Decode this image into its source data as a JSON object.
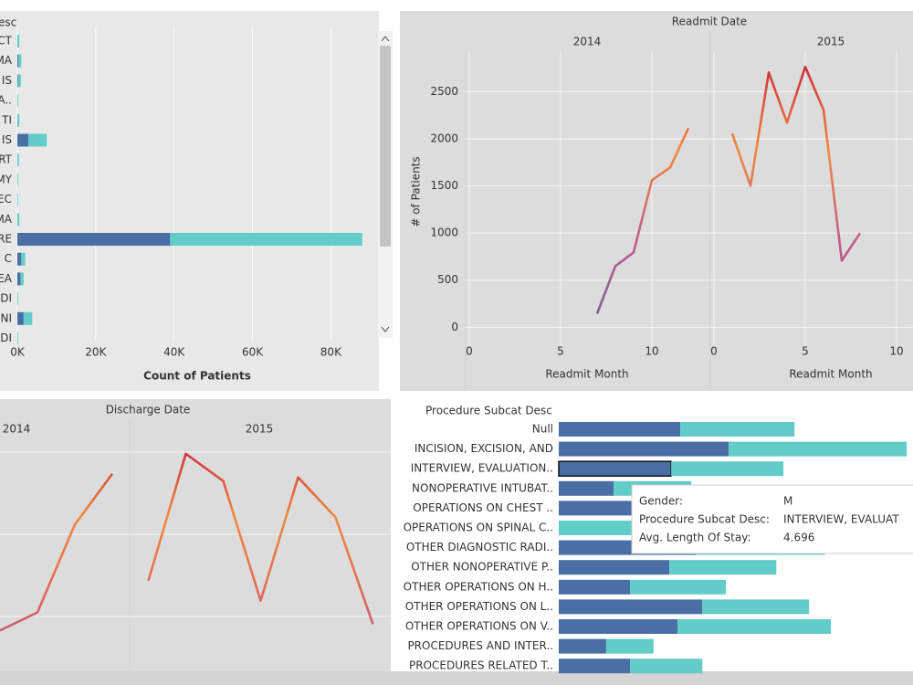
{
  "chart_data": [
    {
      "type": "hbar",
      "title": "esc",
      "x_label": "Count of Patients",
      "categories": [
        "CT",
        "MA",
        "IS",
        "A..",
        "TI",
        "IS",
        "RT",
        "MY",
        "EC",
        "MA",
        "RE",
        "D C",
        "EA",
        "DI",
        "NI",
        "DI"
      ],
      "series": [
        {
          "color": "#4a6fa5",
          "values": [
            0,
            300,
            200,
            0,
            0,
            2800,
            0,
            0,
            0,
            0,
            39000,
            1000,
            800,
            0,
            1600,
            0
          ]
        },
        {
          "color": "#62cdc8",
          "values": [
            500,
            700,
            700,
            200,
            500,
            4700,
            400,
            200,
            200,
            500,
            49000,
            1000,
            800,
            200,
            2200,
            200
          ]
        }
      ],
      "xlim": [
        0,
        89000
      ],
      "xticks": [
        {
          "value": 0,
          "label": "0K"
        },
        {
          "value": 20000,
          "label": "20K"
        },
        {
          "value": 40000,
          "label": "40K"
        },
        {
          "value": 60000,
          "label": "60K"
        },
        {
          "value": 80000,
          "label": "80K"
        }
      ],
      "grid": true
    },
    {
      "type": "line",
      "title": "Readmit Date",
      "y_label": "# of Patients",
      "x_label": "Readmit Month",
      "series": [
        {
          "name": "2014",
          "x": [
            7,
            8,
            9,
            10,
            11,
            12
          ],
          "values": [
            145,
            649,
            795,
            1560,
            1696,
            2112
          ]
        },
        {
          "name": "2015",
          "x": [
            1,
            2,
            3,
            4,
            5,
            6,
            7,
            8
          ],
          "values": [
            2054,
            1502,
            2703,
            2171,
            2762,
            2306,
            707,
            998
          ]
        }
      ],
      "colors": [
        "#4e6aa3",
        "#c0598c",
        "#f08a3e",
        "#c9213a"
      ],
      "xlim": [
        -0.2,
        13.2
      ],
      "xticks": [
        0,
        5,
        10
      ],
      "ylim": [
        -210,
        2920
      ],
      "yticks": [
        0,
        500,
        1000,
        1500,
        2000,
        2500
      ],
      "grid": true
    },
    {
      "type": "line",
      "title": "Discharge Date",
      "series": [
        {
          "name": "2014",
          "x": [
            9,
            10,
            11,
            12
          ],
          "values": [
            750,
            950,
            1920,
            2480
          ],
          "xlim": [
            9,
            12.5
          ]
        },
        {
          "name": "2015",
          "x": [
            1,
            2,
            3,
            4,
            5,
            6,
            7
          ],
          "values": [
            1300,
            2700,
            2400,
            1080,
            2440,
            2000,
            820
          ],
          "xlim": [
            0.5,
            7.5
          ]
        }
      ],
      "colors": [
        "#b0508f",
        "#e06a55",
        "#f08a3e",
        "#c9213a"
      ],
      "ylim": [
        300,
        2850
      ]
    },
    {
      "type": "hbar",
      "title": "Procedure Subcat Desc",
      "categories": [
        "Null",
        "INCISION, EXCISION, AND",
        "INTERVIEW, EVALUATION..",
        "NONOPERATIVE INTUBAT..",
        "OPERATIONS ON CHEST ..",
        "OPERATIONS ON SPINAL C..",
        "OTHER DIAGNOSTIC RADI..",
        "OTHER NONOPERATIVE P..",
        "OTHER OPERATIONS ON H..",
        "OTHER OPERATIONS ON L..",
        "OTHER OPERATIONS ON V..",
        "PROCEDURES AND INTER..",
        "PROCEDURES RELATED T.."
      ],
      "series": [
        {
          "color": "#4a6fa5",
          "values": [
            5.08,
            7.1,
            4.696,
            2.29,
            3.05,
            0,
            5.73,
            4.62,
            2.98,
            5.99,
            4.96,
            1.98,
            2.98
          ]
        },
        {
          "color": "#62cdc8",
          "values": [
            4.77,
            7.44,
            4.69,
            3.24,
            3.3,
            5.5,
            5.38,
            4.47,
            4.0,
            4.47,
            6.41,
            1.98,
            3.02
          ]
        }
      ],
      "xlim": [
        0,
        14.8
      ],
      "highlight": {
        "series": 0,
        "index": 2
      },
      "tooltip": [
        [
          "Gender:",
          "M"
        ],
        [
          "Procedure Subcat Desc:",
          "INTERVIEW, EVALUAT"
        ],
        [
          "Avg. Length Of Stay:",
          "4.696"
        ]
      ]
    }
  ]
}
